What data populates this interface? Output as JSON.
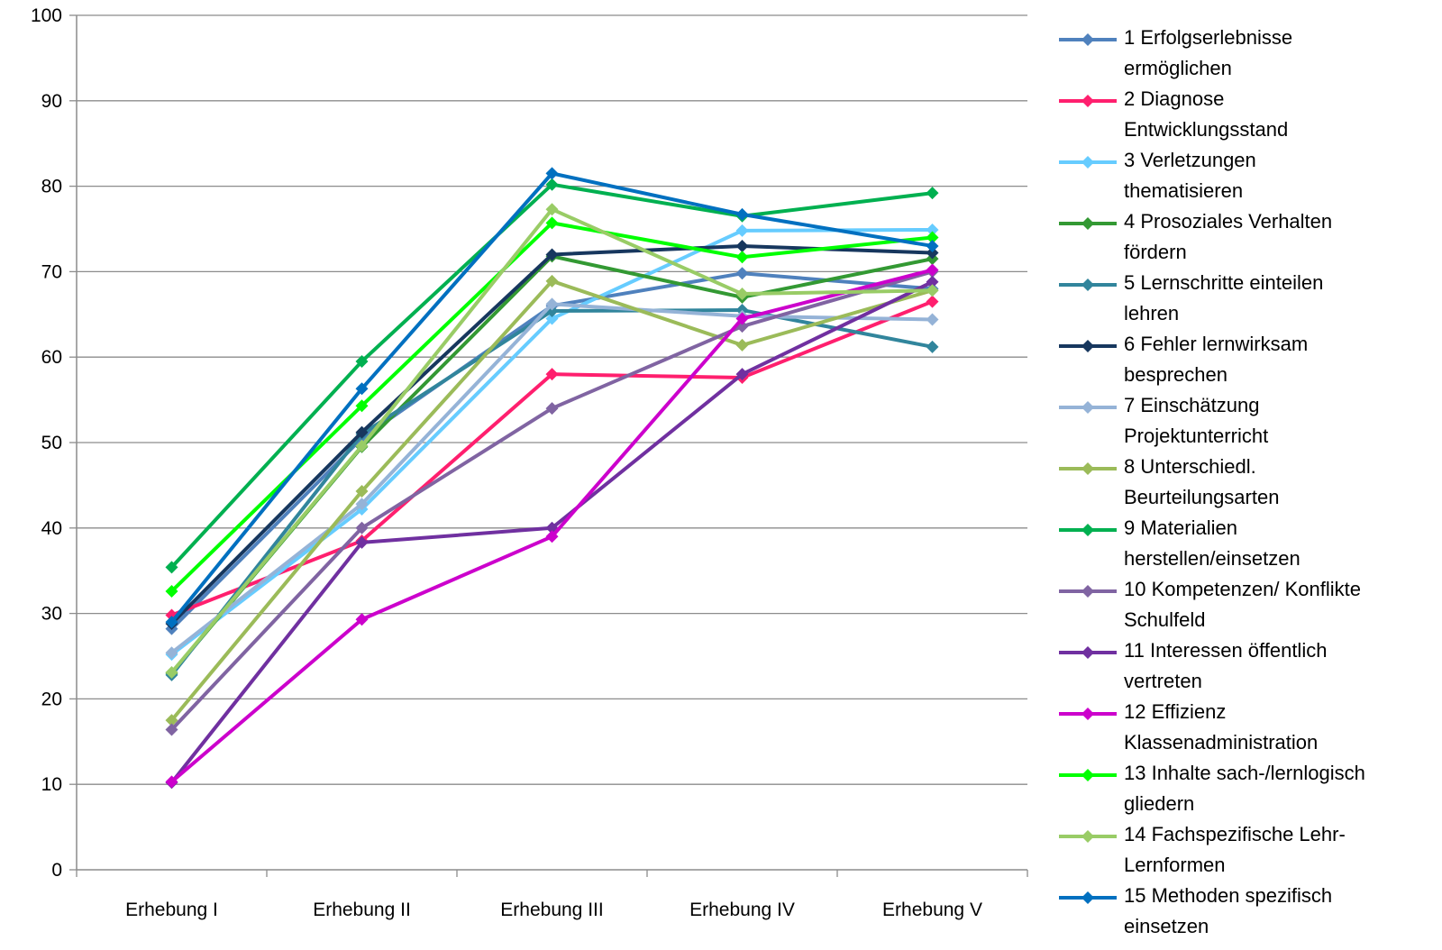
{
  "chart_data": {
    "type": "line",
    "categories": [
      "Erhebung I",
      "Erhebung II",
      "Erhebung III",
      "Erhebung IV",
      "Erhebung V"
    ],
    "ylim": [
      0,
      100
    ],
    "yticks": [
      0,
      10,
      20,
      30,
      40,
      50,
      60,
      70,
      80,
      90,
      100
    ],
    "grid": true,
    "legend_position": "right",
    "series": [
      {
        "name": "1 Erfolgserlebnisse ermöglichen",
        "color": "#4F81BD",
        "values": [
          28.2,
          50.5,
          66.0,
          69.8,
          68.0
        ]
      },
      {
        "name": "2 Diagnose Entwicklungsstand",
        "color": "#FF1F6E",
        "values": [
          29.8,
          38.5,
          58.0,
          57.6,
          66.5
        ]
      },
      {
        "name": "3 Verletzungen thematisieren",
        "color": "#66CCFF",
        "values": [
          25.2,
          42.2,
          64.5,
          74.8,
          74.9
        ]
      },
      {
        "name": "4 Prosoziales Verhalten fördern",
        "color": "#339933",
        "values": [
          23.0,
          49.5,
          71.8,
          67.0,
          71.5
        ]
      },
      {
        "name": "5 Lernschritte einteilen lehren",
        "color": "#31859C",
        "values": [
          22.8,
          51.0,
          65.4,
          65.5,
          61.2
        ]
      },
      {
        "name": "6 Fehler lernwirksam besprechen",
        "color": "#17375E",
        "values": [
          28.8,
          51.2,
          72.0,
          73.0,
          72.2
        ]
      },
      {
        "name": "7 Einschätzung Projektunterricht",
        "color": "#95B3D7",
        "values": [
          25.4,
          42.8,
          66.2,
          64.8,
          64.4
        ]
      },
      {
        "name": "8 Unterschiedl. Beurteilungsarten",
        "color": "#9BBB59",
        "values": [
          17.5,
          44.3,
          68.9,
          61.4,
          67.8
        ]
      },
      {
        "name": "9 Materialien herstellen/einsetzen",
        "color": "#00B050",
        "values": [
          35.4,
          59.5,
          80.2,
          76.5,
          79.2
        ]
      },
      {
        "name": "10 Kompetenzen/ Konflikte Schulfeld",
        "color": "#8064A2",
        "values": [
          16.4,
          40.0,
          54.0,
          63.6,
          70.0
        ]
      },
      {
        "name": "11 Interessen öffentlich vertreten",
        "color": "#7030A0",
        "values": [
          10.2,
          38.3,
          40.0,
          58.0,
          68.8
        ]
      },
      {
        "name": "12 Effizienz Klassenadministration",
        "color": "#CC00CC",
        "values": [
          10.3,
          29.3,
          39.0,
          64.5,
          70.2
        ]
      },
      {
        "name": "13 Inhalte sach-/lernlogisch gliedern",
        "color": "#00FF00",
        "values": [
          32.6,
          54.3,
          75.7,
          71.7,
          74.0
        ]
      },
      {
        "name": "14 Fachspezifische Lehr-Lernformen",
        "color": "#99CC66",
        "values": [
          23.1,
          49.6,
          77.3,
          67.4,
          67.8
        ]
      },
      {
        "name": "15 Methoden spezifisch einsetzen",
        "color": "#0070C0",
        "values": [
          29.0,
          56.3,
          81.5,
          76.7,
          73.0
        ]
      }
    ]
  },
  "legend": {
    "lines": [
      [
        "1 Erfolgserlebnisse",
        "ermöglichen"
      ],
      [
        "2 Diagnose",
        "Entwicklungsstand"
      ],
      [
        "3 Verletzungen",
        "thematisieren"
      ],
      [
        "4 Prosoziales Verhalten",
        "fördern"
      ],
      [
        "5 Lernschritte einteilen",
        "lehren"
      ],
      [
        "6 Fehler lernwirksam",
        "besprechen"
      ],
      [
        "7 Einschätzung",
        "Projektunterricht"
      ],
      [
        "8 Unterschiedl.",
        "Beurteilungsarten"
      ],
      [
        "9 Materialien",
        "herstellen/einsetzen"
      ],
      [
        "10 Kompetenzen/ Konflikte",
        "Schulfeld"
      ],
      [
        "11 Interessen öffentlich",
        "vertreten"
      ],
      [
        "12 Effizienz",
        "Klassenadministration"
      ],
      [
        "13 Inhalte sach-/lernlogisch",
        "gliedern"
      ],
      [
        "14 Fachspezifische Lehr-",
        "Lernformen"
      ],
      [
        "15 Methoden spezifisch",
        "einsetzen"
      ]
    ]
  }
}
